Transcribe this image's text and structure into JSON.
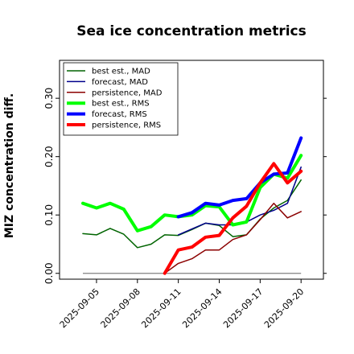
{
  "chart_data": {
    "type": "line",
    "title": "Sea ice concentration metrics",
    "ylabel": "MIZ concentration diff.",
    "xlabel": "",
    "ylim": [
      -0.01,
      0.365
    ],
    "yticks": [
      0.0,
      0.1,
      0.2,
      0.3
    ],
    "ytick_labels": [
      "0.00",
      "0.10",
      "0.20",
      "0.30"
    ],
    "x": [
      "2025-09-04",
      "2025-09-05",
      "2025-09-06",
      "2025-09-07",
      "2025-09-08",
      "2025-09-09",
      "2025-09-10",
      "2025-09-11",
      "2025-09-12",
      "2025-09-13",
      "2025-09-14",
      "2025-09-15",
      "2025-09-16",
      "2025-09-17",
      "2025-09-18",
      "2025-09-19",
      "2025-09-20"
    ],
    "xticks": [
      "2025-09-05",
      "2025-09-08",
      "2025-09-11",
      "2025-09-14",
      "2025-09-17",
      "2025-09-20"
    ],
    "highlight_tick": "2025-09-11",
    "highlight_color": "#228b22",
    "grid": false,
    "legend_position": "upper-left",
    "baseline": {
      "y": 0.0,
      "color": "#808080"
    },
    "series": [
      {
        "name": "best est., MAD",
        "color": "#006400",
        "width": 1.5,
        "values": [
          0.068,
          0.066,
          0.077,
          0.067,
          0.044,
          0.05,
          0.066,
          0.065,
          0.075,
          0.086,
          0.082,
          0.063,
          0.066,
          0.093,
          0.112,
          0.125,
          0.16
        ]
      },
      {
        "name": "forecast,  MAD",
        "color": "#00008b",
        "width": 1.5,
        "values": [
          null,
          null,
          null,
          null,
          null,
          null,
          null,
          0.066,
          0.076,
          0.086,
          0.083,
          0.083,
          0.088,
          0.1,
          0.108,
          0.12,
          0.182
        ]
      },
      {
        "name": "persistence, MAD",
        "color": "#8b0000",
        "width": 1.5,
        "values": [
          null,
          null,
          null,
          null,
          null,
          null,
          0.0,
          0.017,
          0.025,
          0.04,
          0.04,
          0.058,
          0.066,
          0.092,
          0.12,
          0.095,
          0.106
        ]
      },
      {
        "name": "best est., RMS",
        "color": "#00ff00",
        "width": 4,
        "values": [
          0.12,
          0.112,
          0.12,
          0.11,
          0.073,
          0.08,
          0.1,
          0.097,
          0.1,
          0.116,
          0.114,
          0.083,
          0.088,
          0.147,
          0.17,
          0.163,
          0.202
        ]
      },
      {
        "name": "forecast,  RMS",
        "color": "#0000ff",
        "width": 4,
        "values": [
          null,
          null,
          null,
          null,
          null,
          null,
          null,
          0.097,
          0.104,
          0.12,
          0.117,
          0.125,
          0.128,
          0.155,
          0.17,
          0.172,
          0.232
        ]
      },
      {
        "name": "persistence, RMS",
        "color": "#ff0000",
        "width": 4,
        "values": [
          null,
          null,
          null,
          null,
          null,
          null,
          0.0,
          0.04,
          0.045,
          0.062,
          0.065,
          0.095,
          0.115,
          0.155,
          0.188,
          0.155,
          0.175
        ]
      }
    ]
  }
}
